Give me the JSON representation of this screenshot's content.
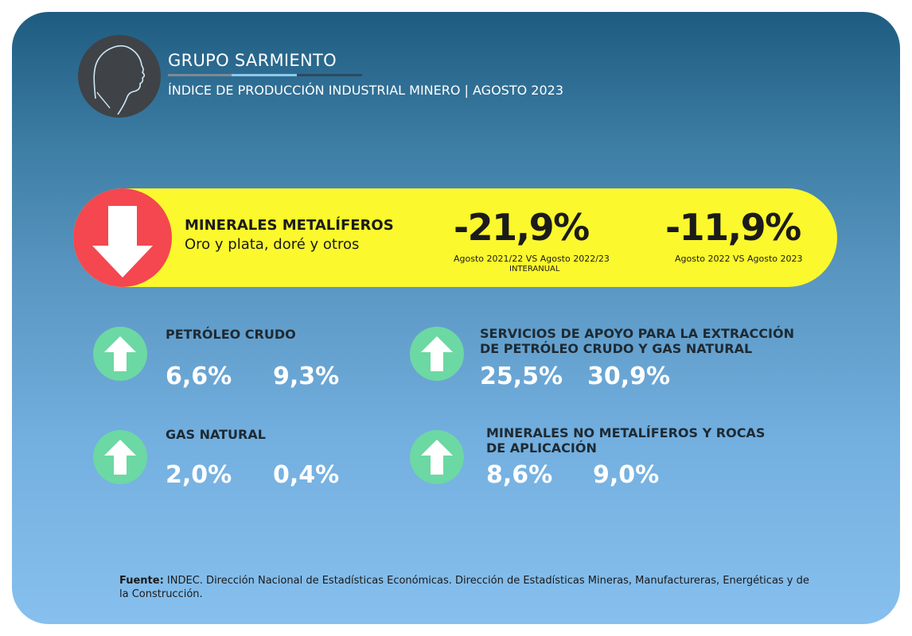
{
  "header": {
    "brand": "GRUPO SARMIENTO",
    "subtitle": "ÍNDICE DE PRODUCCIÓN INDUSTRIAL MINERO | AGOSTO 2023",
    "logo_icon": "portrait-silhouette-icon"
  },
  "hero": {
    "icon": "arrow-down-icon",
    "title": "MINERALES METALÍFEROS",
    "subtitle": "Oro y plata, doré y otros",
    "value_interanual": "-21,9%",
    "caption_interanual": "Agosto 2021/22 VS Agosto 2022/23",
    "caption_interanual_note": "INTERANUAL",
    "value_monthly": "-11,9%",
    "caption_monthly": "Agosto 2022 VS Agosto 2023"
  },
  "items": [
    {
      "title": "PETRÓLEO CRUDO",
      "value1": "6,6%",
      "value2": "9,3%",
      "icon": "arrow-up-icon"
    },
    {
      "title": "SERVICIOS DE APOYO PARA LA EXTRACCIÓN DE PETRÓLEO CRUDO Y GAS NATURAL",
      "value1": "25,5%",
      "value2": "30,9%",
      "icon": "arrow-up-icon"
    },
    {
      "title": "GAS NATURAL",
      "value1": "2,0%",
      "value2": "0,4%",
      "icon": "arrow-up-icon"
    },
    {
      "title": "MINERALES NO METALÍFEROS Y ROCAS DE APLICACIÓN",
      "value1": "8,6%",
      "value2": "9,0%",
      "icon": "arrow-up-icon"
    }
  ],
  "source": {
    "label": "Fuente:",
    "text": " INDEC. Dirección Nacional de Estadísticas Económicas. Dirección de Estadísticas Mineras, Manufactureras, Energéticas y de la Construcción."
  },
  "colors": {
    "hero_bg": "#fbf82d",
    "down_arrow_bg": "#f4474f",
    "up_arrow_bg": "#6cd8a3"
  }
}
